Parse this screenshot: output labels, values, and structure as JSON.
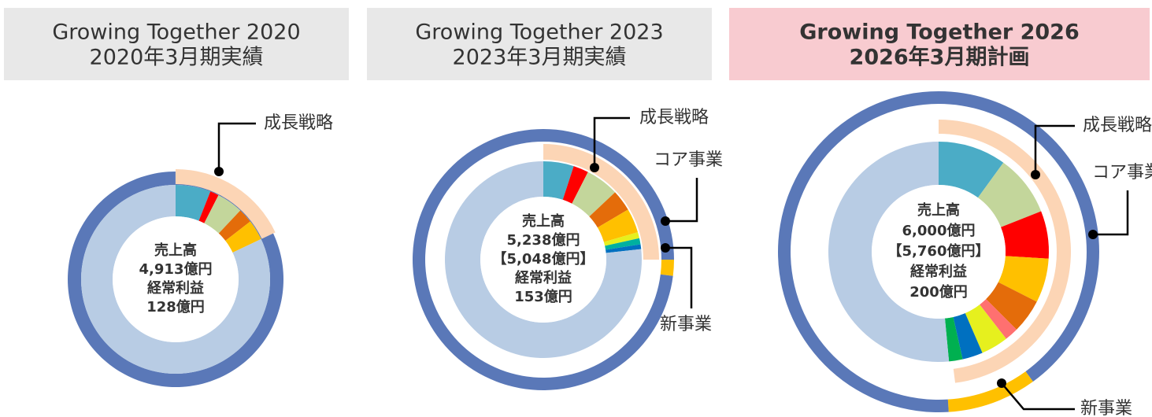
{
  "chart_data": [
    {
      "type": "donut",
      "title": [
        "Growing Together 2020",
        "2020年3月期実績"
      ],
      "center_text": [
        "売上高",
        "4,913億円",
        "経常利益",
        "128億円"
      ],
      "slices": {
        "values": [
          6,
          1.5,
          4.5,
          2.5,
          3.5,
          82
        ],
        "colors": [
          "#4bacc6",
          "#ff0000",
          "#c3d69b",
          "#e46c0a",
          "#ffc000",
          "#b8cce4"
        ]
      },
      "outer": {
        "values": [
          100
        ],
        "colors": [
          "#5a78b8"
        ]
      },
      "growth_arc": {
        "value": 18,
        "color": "#fcd5b5"
      },
      "annotations": [
        "成長戦略"
      ]
    },
    {
      "type": "donut",
      "title": [
        "Growing Together 2023",
        "2023年3月期実績"
      ],
      "center_text": [
        "売上高",
        "5,238億円",
        "【5,048億円】",
        "経常利益",
        "153億円"
      ],
      "slices": {
        "values": [
          5,
          2.5,
          5.5,
          3.5,
          4,
          1,
          1,
          0.8,
          76.7
        ],
        "colors": [
          "#4bacc6",
          "#ff0000",
          "#c3d69b",
          "#e46c0a",
          "#ffc000",
          "#e6f01e",
          "#00b0a0",
          "#0070c0",
          "#b8cce4"
        ]
      },
      "outer": {
        "values": [
          25,
          2,
          73
        ],
        "colors": [
          "#5a78b8",
          "#ffc000",
          "#5a78b8"
        ]
      },
      "growth_arc": {
        "value": 25,
        "color": "#fcd5b5"
      },
      "annotations": [
        "成長戦略",
        "コア事業",
        "新事業"
      ]
    },
    {
      "type": "donut",
      "title": [
        "Growing Together 2026",
        "2026年3月期計画"
      ],
      "center_text": [
        "売上高",
        "6,000億円",
        "【5,760億円】",
        "経常利益",
        "200億円"
      ],
      "slices": {
        "values": [
          10,
          9,
          7,
          6.5,
          5,
          2,
          4,
          3,
          2,
          51.5
        ],
        "colors": [
          "#4bacc6",
          "#c3d69b",
          "#ff0000",
          "#ffc000",
          "#e46c0a",
          "#ff7070",
          "#e6f01e",
          "#0070c0",
          "#00b050",
          "#b8cce4"
        ]
      },
      "outer": {
        "values": [
          40,
          9,
          51
        ],
        "colors": [
          "#5a78b8",
          "#ffc000",
          "#5a78b8"
        ]
      },
      "growth_arc": {
        "value": 48,
        "color": "#fcd5b5"
      },
      "annotations": [
        "成長戦略",
        "コア事業",
        "新事業"
      ]
    }
  ]
}
